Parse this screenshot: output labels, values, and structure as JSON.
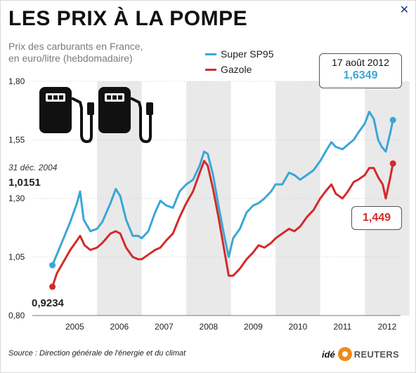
{
  "header": {
    "title": "LES PRIX À LA POMPE",
    "subtitle_line1": "Prix des carburants en France,",
    "subtitle_line2": "en euro/litre (hebdomadaire)",
    "close_icon": "close-icon"
  },
  "legend": {
    "items": [
      {
        "label": "Super SP95",
        "color": "#3aa6d6"
      },
      {
        "label": "Gazole",
        "color": "#d42a2a"
      }
    ]
  },
  "annotations": {
    "start_date": "31 déc. 2004",
    "start_sp95": "1,0151",
    "start_gazole": "0,9234",
    "end_date": "17 août 2012",
    "end_sp95": "1,6349",
    "end_gazole": "1,449"
  },
  "footer": {
    "source": "Source : Direction générale de l'énergie et du climat",
    "brand_ide": "idé",
    "brand_reuters": "REUTERS"
  },
  "icons": [
    "fuel-pump-icon",
    "fuel-pump-icon"
  ],
  "colors": {
    "sp95": "#3aa6d6",
    "gazole": "#d42a2a",
    "band": "#e9e9e9"
  },
  "chart_data": {
    "type": "line",
    "x_unit": "year",
    "ylim": [
      0.8,
      1.8
    ],
    "yticks": [
      "1,80",
      "1,55",
      "1,30",
      "1,05",
      "0,80"
    ],
    "ytick_values": [
      1.8,
      1.55,
      1.3,
      1.05,
      0.8
    ],
    "xticks": [
      "2005",
      "2006",
      "2007",
      "2008",
      "2009",
      "2010",
      "2011",
      "2012"
    ],
    "grid": "horizontal",
    "legend_position": "top",
    "series": [
      {
        "name": "Super SP95",
        "points": [
          [
            2005.0,
            1.015
          ],
          [
            2005.12,
            1.07
          ],
          [
            2005.25,
            1.13
          ],
          [
            2005.4,
            1.2
          ],
          [
            2005.55,
            1.28
          ],
          [
            2005.62,
            1.33
          ],
          [
            2005.7,
            1.21
          ],
          [
            2005.85,
            1.16
          ],
          [
            2006.0,
            1.17
          ],
          [
            2006.12,
            1.2
          ],
          [
            2006.3,
            1.28
          ],
          [
            2006.42,
            1.34
          ],
          [
            2006.52,
            1.31
          ],
          [
            2006.65,
            1.21
          ],
          [
            2006.8,
            1.14
          ],
          [
            2006.92,
            1.14
          ],
          [
            2007.0,
            1.13
          ],
          [
            2007.15,
            1.16
          ],
          [
            2007.3,
            1.24
          ],
          [
            2007.42,
            1.29
          ],
          [
            2007.55,
            1.27
          ],
          [
            2007.7,
            1.26
          ],
          [
            2007.85,
            1.33
          ],
          [
            2008.0,
            1.36
          ],
          [
            2008.15,
            1.38
          ],
          [
            2008.3,
            1.44
          ],
          [
            2008.4,
            1.5
          ],
          [
            2008.48,
            1.49
          ],
          [
            2008.6,
            1.4
          ],
          [
            2008.72,
            1.27
          ],
          [
            2008.85,
            1.14
          ],
          [
            2008.95,
            1.05
          ],
          [
            2009.05,
            1.13
          ],
          [
            2009.2,
            1.17
          ],
          [
            2009.35,
            1.24
          ],
          [
            2009.5,
            1.27
          ],
          [
            2009.62,
            1.28
          ],
          [
            2009.75,
            1.3
          ],
          [
            2009.9,
            1.33
          ],
          [
            2010.0,
            1.36
          ],
          [
            2010.15,
            1.36
          ],
          [
            2010.3,
            1.41
          ],
          [
            2010.42,
            1.4
          ],
          [
            2010.55,
            1.38
          ],
          [
            2010.7,
            1.4
          ],
          [
            2010.85,
            1.42
          ],
          [
            2011.0,
            1.46
          ],
          [
            2011.12,
            1.5
          ],
          [
            2011.25,
            1.54
          ],
          [
            2011.35,
            1.52
          ],
          [
            2011.5,
            1.51
          ],
          [
            2011.62,
            1.53
          ],
          [
            2011.75,
            1.55
          ],
          [
            2011.85,
            1.58
          ],
          [
            2012.0,
            1.62
          ],
          [
            2012.1,
            1.67
          ],
          [
            2012.2,
            1.64
          ],
          [
            2012.3,
            1.55
          ],
          [
            2012.38,
            1.52
          ],
          [
            2012.47,
            1.5
          ],
          [
            2012.57,
            1.58
          ],
          [
            2012.63,
            1.6349
          ]
        ]
      },
      {
        "name": "Gazole",
        "points": [
          [
            2005.0,
            0.923
          ],
          [
            2005.1,
            0.98
          ],
          [
            2005.25,
            1.03
          ],
          [
            2005.4,
            1.08
          ],
          [
            2005.55,
            1.12
          ],
          [
            2005.62,
            1.14
          ],
          [
            2005.72,
            1.1
          ],
          [
            2005.85,
            1.08
          ],
          [
            2006.0,
            1.09
          ],
          [
            2006.12,
            1.11
          ],
          [
            2006.3,
            1.15
          ],
          [
            2006.42,
            1.16
          ],
          [
            2006.52,
            1.15
          ],
          [
            2006.65,
            1.09
          ],
          [
            2006.8,
            1.05
          ],
          [
            2006.92,
            1.04
          ],
          [
            2007.0,
            1.04
          ],
          [
            2007.15,
            1.06
          ],
          [
            2007.3,
            1.08
          ],
          [
            2007.42,
            1.09
          ],
          [
            2007.55,
            1.12
          ],
          [
            2007.7,
            1.15
          ],
          [
            2007.85,
            1.22
          ],
          [
            2008.0,
            1.28
          ],
          [
            2008.15,
            1.33
          ],
          [
            2008.3,
            1.41
          ],
          [
            2008.4,
            1.46
          ],
          [
            2008.48,
            1.44
          ],
          [
            2008.6,
            1.34
          ],
          [
            2008.72,
            1.22
          ],
          [
            2008.85,
            1.08
          ],
          [
            2008.95,
            0.97
          ],
          [
            2009.05,
            0.97
          ],
          [
            2009.2,
            1.0
          ],
          [
            2009.35,
            1.04
          ],
          [
            2009.5,
            1.07
          ],
          [
            2009.62,
            1.1
          ],
          [
            2009.75,
            1.09
          ],
          [
            2009.9,
            1.11
          ],
          [
            2010.0,
            1.13
          ],
          [
            2010.15,
            1.15
          ],
          [
            2010.3,
            1.17
          ],
          [
            2010.42,
            1.16
          ],
          [
            2010.55,
            1.18
          ],
          [
            2010.7,
            1.22
          ],
          [
            2010.85,
            1.25
          ],
          [
            2011.0,
            1.3
          ],
          [
            2011.12,
            1.33
          ],
          [
            2011.25,
            1.36
          ],
          [
            2011.35,
            1.32
          ],
          [
            2011.5,
            1.3
          ],
          [
            2011.62,
            1.33
          ],
          [
            2011.75,
            1.37
          ],
          [
            2011.85,
            1.38
          ],
          [
            2012.0,
            1.4
          ],
          [
            2012.1,
            1.43
          ],
          [
            2012.2,
            1.43
          ],
          [
            2012.3,
            1.39
          ],
          [
            2012.4,
            1.36
          ],
          [
            2012.47,
            1.3
          ],
          [
            2012.57,
            1.39
          ],
          [
            2012.63,
            1.449
          ]
        ]
      }
    ]
  }
}
